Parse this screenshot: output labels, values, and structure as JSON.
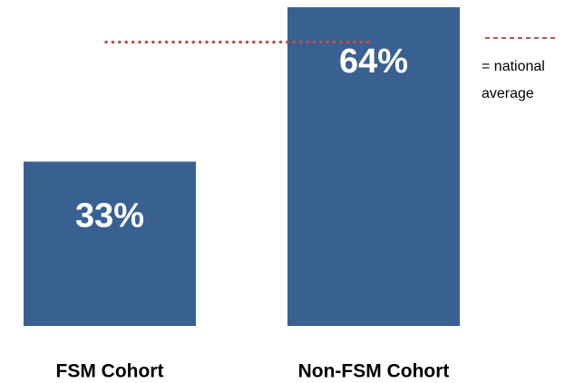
{
  "chart_data": {
    "type": "bar",
    "categories": [
      "FSM Cohort",
      "Non-FSM Cohort"
    ],
    "values": [
      33,
      64
    ],
    "value_labels": [
      "33%",
      "64%"
    ],
    "color": "#386191",
    "ylim": [
      0,
      64
    ],
    "reference_line": {
      "value": 57,
      "color": "#c0504d"
    },
    "legend_label": [
      "= national",
      "average"
    ]
  }
}
